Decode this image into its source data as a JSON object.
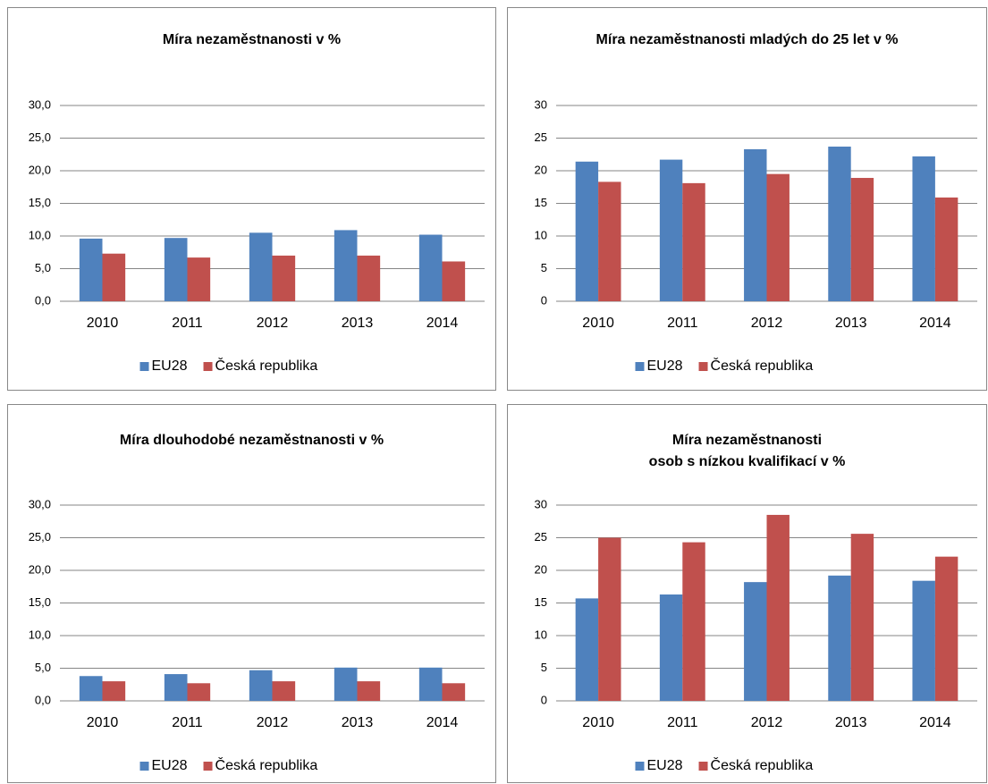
{
  "chart_data": [
    {
      "type": "bar",
      "title": "Míra nezaměstnanosti v %",
      "categories": [
        "2010",
        "2011",
        "2012",
        "2013",
        "2014"
      ],
      "series": [
        {
          "name": "EU28",
          "color": "#4f81bd",
          "values": [
            9.6,
            9.7,
            10.5,
            10.9,
            10.2
          ]
        },
        {
          "name": "Česká republika",
          "color": "#c0504d",
          "values": [
            7.3,
            6.7,
            7.0,
            7.0,
            6.1
          ]
        }
      ],
      "ylim": [
        0,
        30
      ],
      "yticks": [
        {
          "value": 0,
          "label": "0,0"
        },
        {
          "value": 5,
          "label": "5,0"
        },
        {
          "value": 10,
          "label": "10,0"
        },
        {
          "value": 15,
          "label": "15,0"
        },
        {
          "value": 20,
          "label": "20,0"
        },
        {
          "value": 25,
          "label": "25,0"
        },
        {
          "value": 30,
          "label": "30,0"
        }
      ],
      "grid": true,
      "legend": "bottom"
    },
    {
      "type": "bar",
      "title": "Míra nezaměstnanosti mladých do 25 let v %",
      "categories": [
        "2010",
        "2011",
        "2012",
        "2013",
        "2014"
      ],
      "series": [
        {
          "name": "EU28",
          "color": "#4f81bd",
          "values": [
            21.4,
            21.7,
            23.3,
            23.7,
            22.2
          ]
        },
        {
          "name": "Česká republika",
          "color": "#c0504d",
          "values": [
            18.3,
            18.1,
            19.5,
            18.9,
            15.9
          ]
        }
      ],
      "ylim": [
        0,
        30
      ],
      "yticks": [
        0,
        5,
        10,
        15,
        20,
        25,
        30
      ],
      "grid": true,
      "legend": "bottom"
    },
    {
      "type": "bar",
      "title": "Míra dlouhodobé nezaměstnanosti v %",
      "categories": [
        "2010",
        "2011",
        "2012",
        "2013",
        "2014"
      ],
      "series": [
        {
          "name": "EU28",
          "color": "#4f81bd",
          "values": [
            3.8,
            4.1,
            4.7,
            5.1,
            5.1
          ]
        },
        {
          "name": "Česká republika",
          "color": "#c0504d",
          "values": [
            3.0,
            2.7,
            3.0,
            3.0,
            2.7
          ]
        }
      ],
      "ylim": [
        0,
        30
      ],
      "yticks": [
        {
          "value": 0,
          "label": "0,0"
        },
        {
          "value": 5,
          "label": "5,0"
        },
        {
          "value": 10,
          "label": "10,0"
        },
        {
          "value": 15,
          "label": "15,0"
        },
        {
          "value": 20,
          "label": "20,0"
        },
        {
          "value": 25,
          "label": "25,0"
        },
        {
          "value": 30,
          "label": "30,0"
        }
      ],
      "grid": true,
      "legend": "bottom"
    },
    {
      "type": "bar",
      "title": [
        "Míra nezaměstnanosti",
        "osob s nízkou kvalifikací v %"
      ],
      "categories": [
        "2010",
        "2011",
        "2012",
        "2013",
        "2014"
      ],
      "series": [
        {
          "name": "EU28",
          "color": "#4f81bd",
          "values": [
            15.7,
            16.3,
            18.2,
            19.2,
            18.4
          ]
        },
        {
          "name": "Česká republika",
          "color": "#c0504d",
          "values": [
            25.0,
            24.3,
            28.5,
            25.6,
            22.1
          ]
        }
      ],
      "ylim": [
        0,
        30
      ],
      "yticks": [
        0,
        5,
        10,
        15,
        20,
        25,
        30
      ],
      "grid": true,
      "legend": "bottom"
    }
  ]
}
